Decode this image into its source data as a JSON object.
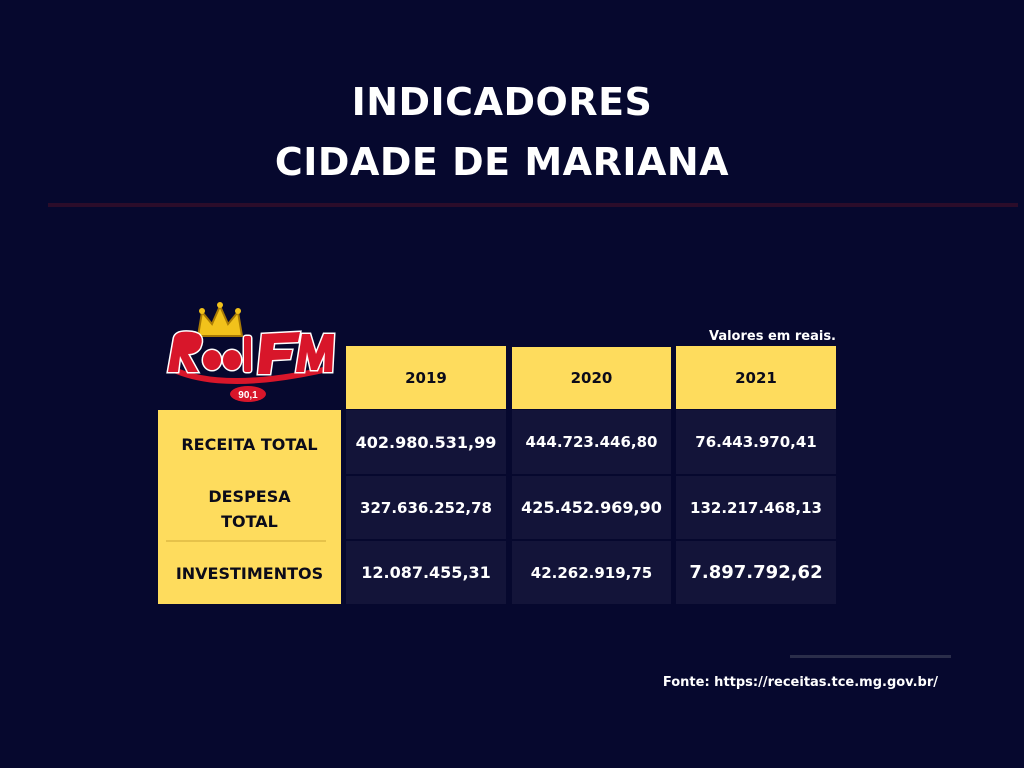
{
  "header": {
    "title_line1": "INDICADORES",
    "title_line2": "CIDADE DE MARIANA"
  },
  "logo": {
    "brand": "Real FM",
    "frequency": "90,1",
    "icon": "crown-icon"
  },
  "note": "Valores em reais.",
  "table": {
    "years": [
      "2019",
      "2020",
      "2021"
    ],
    "rows": [
      {
        "label": "RECEITA TOTAL",
        "values": [
          "402.980.531,99",
          "444.723.446,80",
          "76.443.970,41"
        ]
      },
      {
        "label_line1": "DESPESA",
        "label_line2": "TOTAL",
        "values": [
          "327.636.252,78",
          "425.452.969,90",
          "132.217.468,13"
        ]
      },
      {
        "label": "INVESTIMENTOS",
        "values": [
          "12.087.455,31",
          "42.262.919,75",
          "7.897.792,62"
        ]
      }
    ]
  },
  "source": "Fonte: https://receitas.tce.mg.gov.br/",
  "colors": {
    "background": "#06082e",
    "accent_yellow": "#fedc5d",
    "value_cell": "#131439",
    "logo_red": "#d8162a",
    "logo_gold": "#f2c21b"
  }
}
